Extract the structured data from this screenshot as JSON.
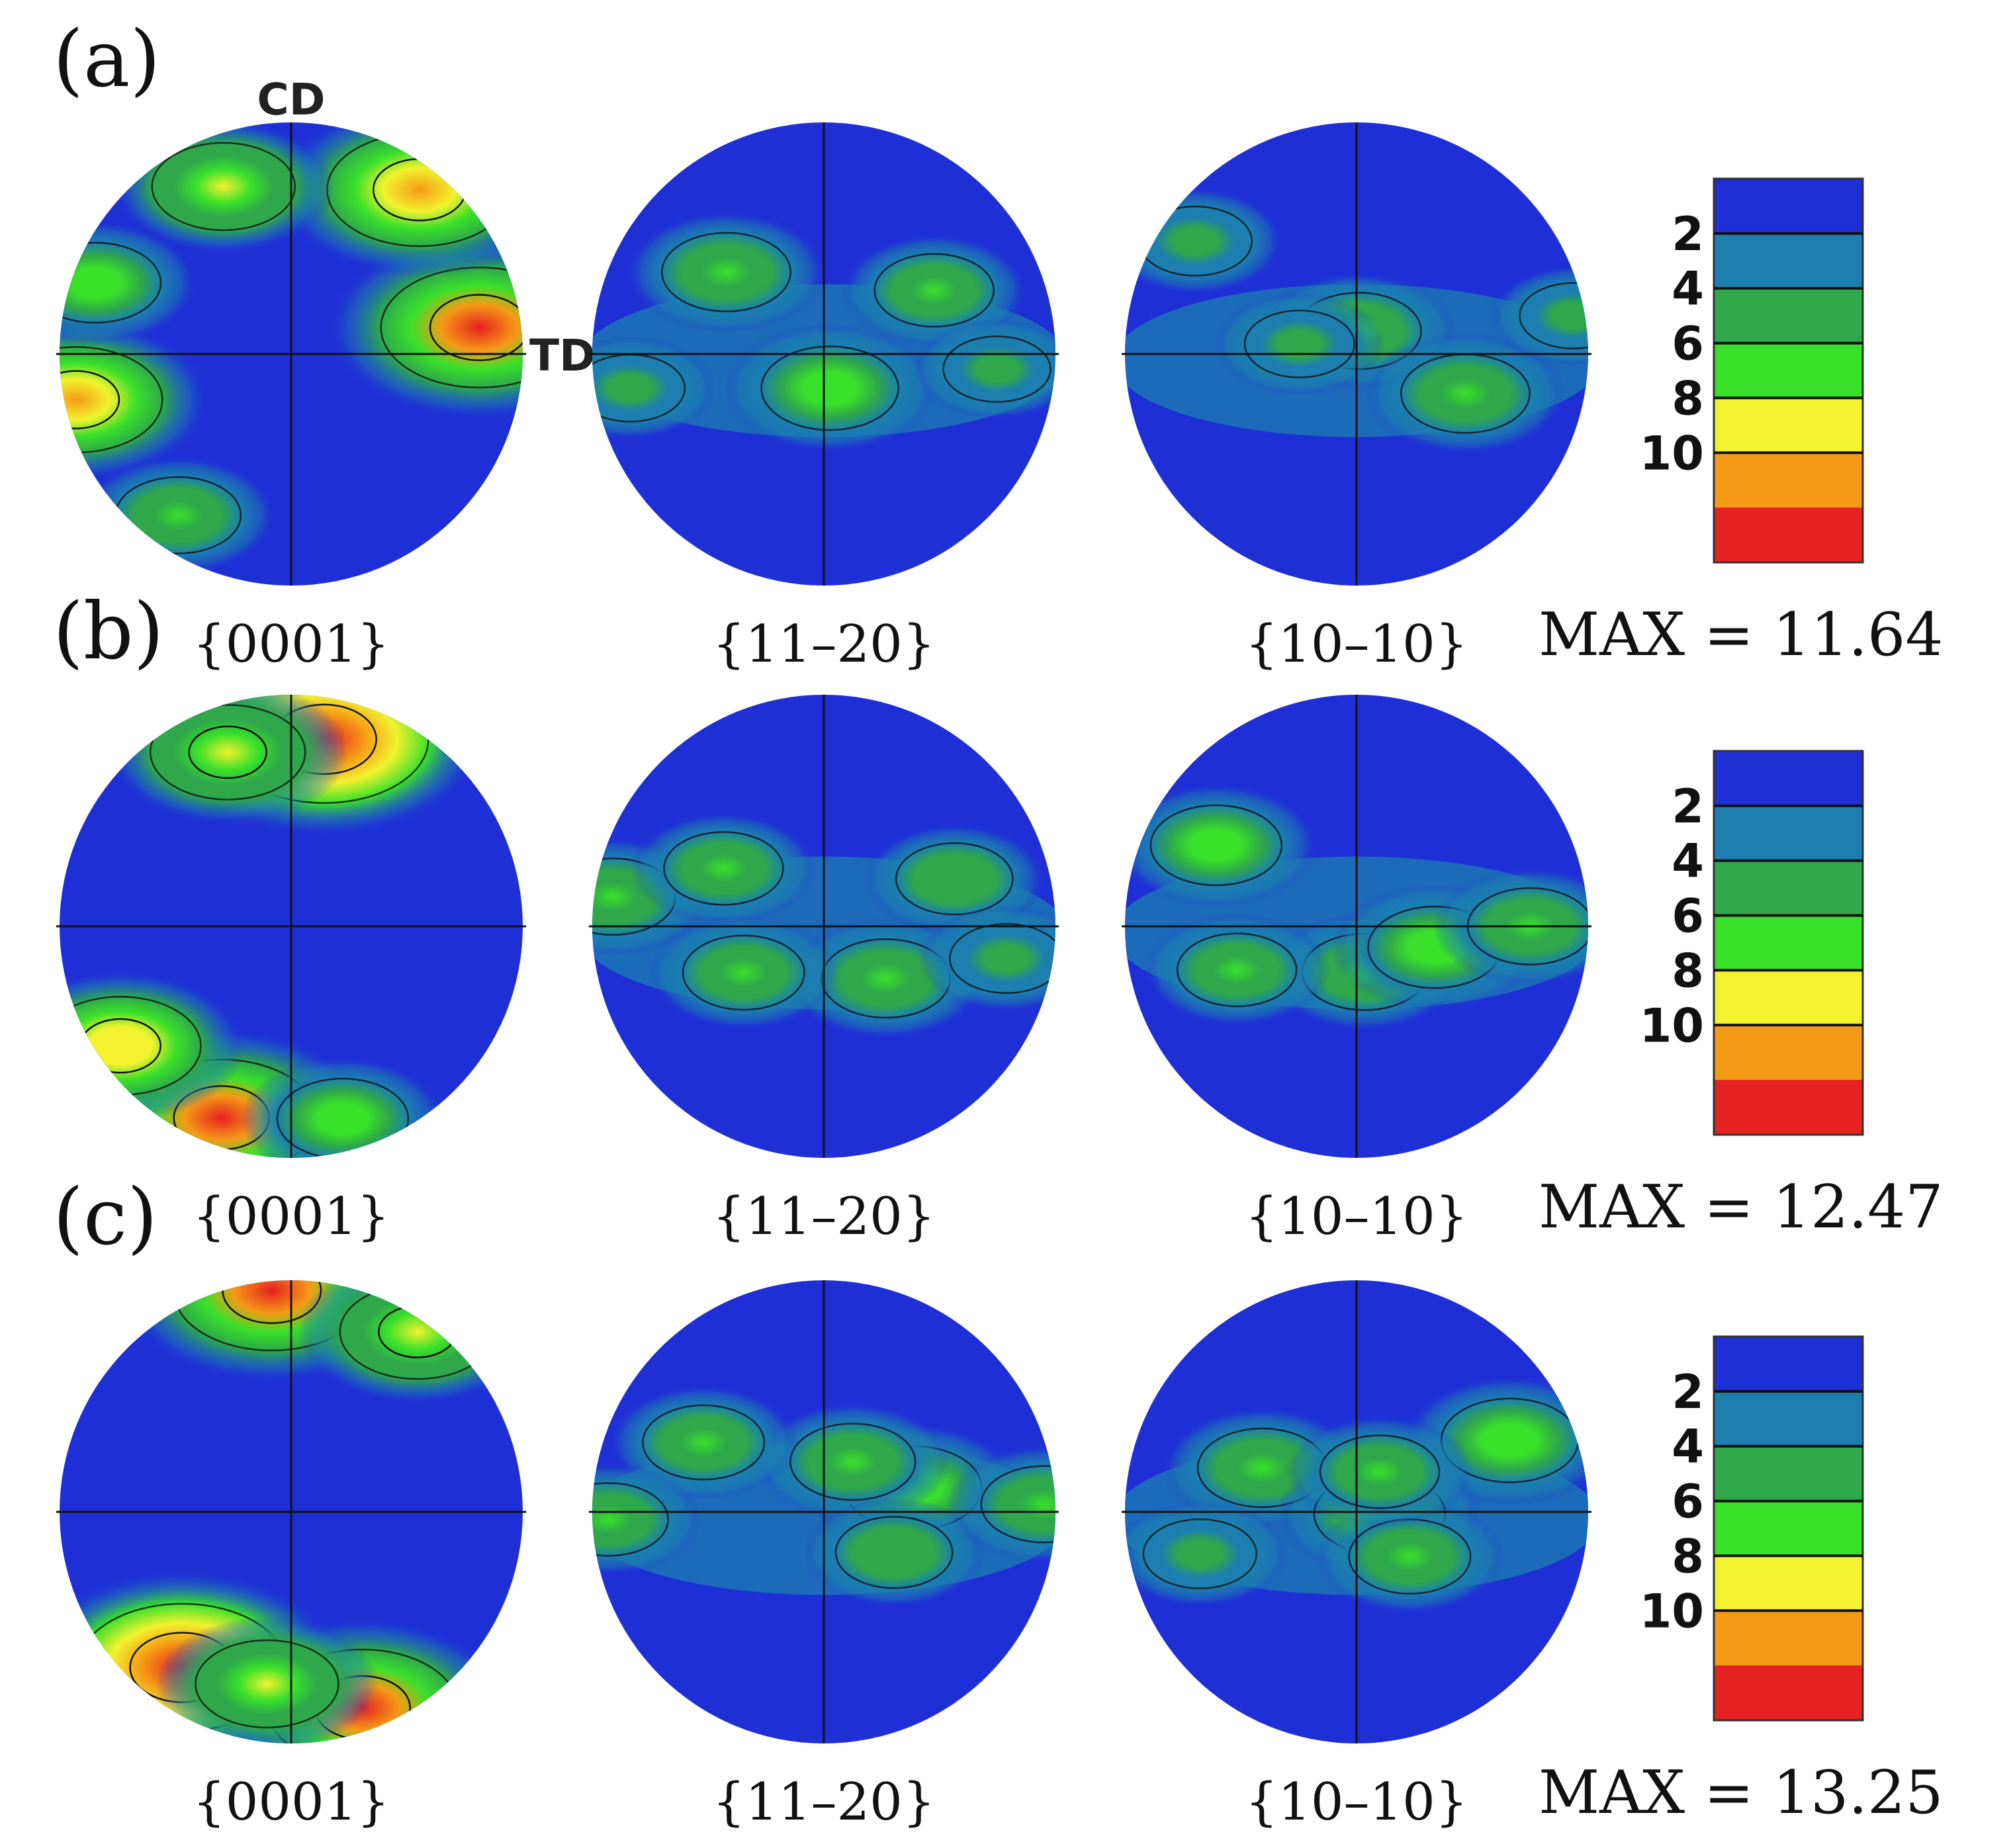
{
  "colors": {
    "blue": "#1f2fd6",
    "blue_green": "#1c7fb0",
    "green": "#2ea84a",
    "bright_green": "#39e02a",
    "yellow": "#f2f22e",
    "orange": "#f59a16",
    "red": "#e5221f",
    "contour": "#111111"
  },
  "chart_data": {
    "type": "heatmap",
    "description_kind": "pole_figures",
    "axis_labels": {
      "cd": "CD",
      "td": "TD"
    },
    "pole_figure_labels": [
      "{0001}",
      "{11–20}",
      "{10–10}"
    ],
    "colorbar": {
      "ticks": [
        "2",
        "4",
        "6",
        "8",
        "10"
      ],
      "levels": [
        2,
        4,
        6,
        8,
        10
      ],
      "range": [
        0,
        12
      ],
      "colors": [
        "#1f2fd6",
        "#1c7fb0",
        "#2ea84a",
        "#39e02a",
        "#f2f22e",
        "#f59a16",
        "#e5221f"
      ]
    },
    "rows": [
      {
        "panel": "(a)",
        "max_text": "MAX = 11.64",
        "max": 11.64,
        "figures": [
          {
            "label": "{0001}",
            "hotspots": [
              {
                "theta": 8,
                "r": 0.82,
                "value": 10.5
              },
              {
                "theta": 52,
                "r": 0.9,
                "value": 9.5
              },
              {
                "theta": 112,
                "r": 0.78,
                "value": 6.0
              },
              {
                "theta": 192,
                "r": 0.95,
                "value": 8.5
              },
              {
                "theta": 160,
                "r": 0.9,
                "value": 5.0
              },
              {
                "theta": 235,
                "r": 0.85,
                "value": 4.5
              }
            ]
          },
          {
            "label": "{11–20}",
            "hotspots": [
              {
                "theta": 140,
                "r": 0.55,
                "value": 4.8
              },
              {
                "theta": 280,
                "r": 0.15,
                "value": 5.5
              },
              {
                "theta": 30,
                "r": 0.55,
                "value": 4.0
              },
              {
                "theta": 190,
                "r": 0.85,
                "value": 3.2
              },
              {
                "theta": 355,
                "r": 0.75,
                "value": 3.0
              }
            ]
          },
          {
            "label": "{10–10}",
            "hotspots": [
              {
                "theta": 145,
                "r": 0.85,
                "value": 3.5
              },
              {
                "theta": 85,
                "r": 0.1,
                "value": 4.5
              },
              {
                "theta": 340,
                "r": 0.5,
                "value": 4.8
              },
              {
                "theta": 170,
                "r": 0.25,
                "value": 3.2
              },
              {
                "theta": 10,
                "r": 0.95,
                "value": 3.0
              }
            ]
          }
        ]
      },
      {
        "panel": "(b)",
        "max_text": "MAX = 12.47",
        "max": 12.47,
        "figures": [
          {
            "label": "{0001}",
            "hotspots": [
              {
                "theta": 80,
                "r": 0.82,
                "value": 11.5
              },
              {
                "theta": 110,
                "r": 0.8,
                "value": 7.0
              },
              {
                "theta": 250,
                "r": 0.88,
                "value": 10.0
              },
              {
                "theta": 215,
                "r": 0.9,
                "value": 7.5
              },
              {
                "theta": 285,
                "r": 0.86,
                "value": 5.0
              }
            ]
          },
          {
            "label": "{11–20}",
            "hotspots": [
              {
                "theta": 172,
                "r": 0.92,
                "value": 4.5
              },
              {
                "theta": 150,
                "r": 0.5,
                "value": 4.0
              },
              {
                "theta": 320,
                "r": 0.35,
                "value": 4.8
              },
              {
                "theta": 210,
                "r": 0.4,
                "value": 4.2
              },
              {
                "theta": 20,
                "r": 0.6,
                "value": 3.8
              },
              {
                "theta": 350,
                "r": 0.8,
                "value": 3.5
              }
            ]
          },
          {
            "label": "{10–10}",
            "hotspots": [
              {
                "theta": 150,
                "r": 0.7,
                "value": 5.0
              },
              {
                "theta": 280,
                "r": 0.2,
                "value": 4.5
              },
              {
                "theta": 345,
                "r": 0.35,
                "value": 5.2
              },
              {
                "theta": 200,
                "r": 0.55,
                "value": 4.0
              },
              {
                "theta": 0,
                "r": 0.75,
                "value": 4.5
              }
            ]
          }
        ]
      },
      {
        "panel": "(c)",
        "max_text": "MAX = 13.25",
        "max": 13.25,
        "figures": [
          {
            "label": "{0001}",
            "hotspots": [
              {
                "theta": 95,
                "r": 0.96,
                "value": 10.5
              },
              {
                "theta": 55,
                "r": 0.95,
                "value": 7.0
              },
              {
                "theta": 235,
                "r": 0.82,
                "value": 11.5
              },
              {
                "theta": 290,
                "r": 0.9,
                "value": 10.0
              },
              {
                "theta": 262,
                "r": 0.75,
                "value": 6.0
              }
            ]
          },
          {
            "label": "{11–20}",
            "hotspots": [
              {
                "theta": 15,
                "r": 0.4,
                "value": 5.5
              },
              {
                "theta": 60,
                "r": 0.25,
                "value": 4.5
              },
              {
                "theta": 150,
                "r": 0.6,
                "value": 4.2
              },
              {
                "theta": 330,
                "r": 0.35,
                "value": 3.8
              },
              {
                "theta": 182,
                "r": 0.93,
                "value": 4.0
              },
              {
                "theta": 2,
                "r": 0.95,
                "value": 4.5
              }
            ]
          },
          {
            "label": "{10–10}",
            "hotspots": [
              {
                "theta": 155,
                "r": 0.45,
                "value": 4.8
              },
              {
                "theta": 25,
                "r": 0.73,
                "value": 5.5
              },
              {
                "theta": 355,
                "r": 0.1,
                "value": 5.0
              },
              {
                "theta": 320,
                "r": 0.3,
                "value": 4.2
              },
              {
                "theta": 60,
                "r": 0.2,
                "value": 4.0
              },
              {
                "theta": 195,
                "r": 0.7,
                "value": 3.5
              }
            ]
          }
        ]
      }
    ]
  }
}
